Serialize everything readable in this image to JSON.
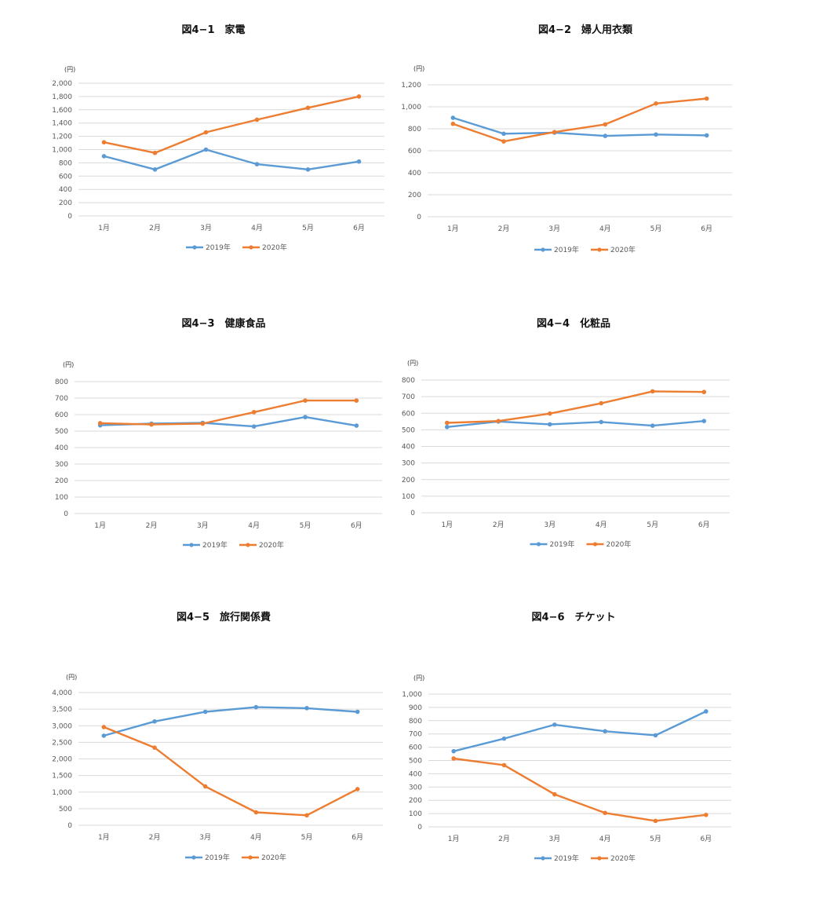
{
  "colors": {
    "y2019": "#5b9bd5",
    "y2020": "#ed7d31",
    "grid": "#d9d9d9"
  },
  "chart_data": [
    {
      "type": "line",
      "title": "図4−1　家電",
      "unit": "(円)",
      "categories": [
        "1月",
        "2月",
        "3月",
        "4月",
        "5月",
        "6月"
      ],
      "ylim": [
        0,
        2000
      ],
      "yticks": [
        0,
        200,
        400,
        600,
        800,
        1000,
        1200,
        1400,
        1600,
        1800,
        2000
      ],
      "ytick_labels": [
        "0",
        "200",
        "400",
        "600",
        "800",
        "1,000",
        "1,200",
        "1,400",
        "1,600",
        "1,800",
        "2,000"
      ],
      "grid": true,
      "legend": "bottom",
      "series": [
        {
          "name": "2019年",
          "values": [
            900,
            700,
            1000,
            780,
            700,
            820
          ]
        },
        {
          "name": "2020年",
          "values": [
            1110,
            950,
            1260,
            1450,
            1630,
            1800
          ]
        }
      ]
    },
    {
      "type": "line",
      "title": "図4−2　婦人用衣類",
      "unit": "(円)",
      "categories": [
        "1月",
        "2月",
        "3月",
        "4月",
        "5月",
        "6月"
      ],
      "ylim": [
        0,
        1200
      ],
      "yticks": [
        0,
        200,
        400,
        600,
        800,
        1000,
        1200
      ],
      "ytick_labels": [
        "0",
        "200",
        "400",
        "600",
        "800",
        "1,000",
        "1,200"
      ],
      "grid": true,
      "legend": "bottom",
      "series": [
        {
          "name": "2019年",
          "values": [
            900,
            755,
            765,
            735,
            748,
            740
          ]
        },
        {
          "name": "2020年",
          "values": [
            845,
            685,
            770,
            840,
            1030,
            1075
          ]
        }
      ]
    },
    {
      "type": "line",
      "title": "図4−3　健康食品",
      "unit": "(円)",
      "categories": [
        "1月",
        "2月",
        "3月",
        "4月",
        "5月",
        "6月"
      ],
      "ylim": [
        0,
        800
      ],
      "yticks": [
        0,
        100,
        200,
        300,
        400,
        500,
        600,
        700,
        800
      ],
      "ytick_labels": [
        "0",
        "100",
        "200",
        "300",
        "400",
        "500",
        "600",
        "700",
        "800"
      ],
      "grid": true,
      "legend": "bottom",
      "series": [
        {
          "name": "2019年",
          "values": [
            535,
            545,
            550,
            528,
            585,
            533
          ]
        },
        {
          "name": "2020年",
          "values": [
            548,
            540,
            545,
            615,
            685,
            685
          ]
        }
      ]
    },
    {
      "type": "line",
      "title": "図4−4　化粧品",
      "unit": "(円)",
      "categories": [
        "1月",
        "2月",
        "3月",
        "4月",
        "5月",
        "6月"
      ],
      "ylim": [
        0,
        800
      ],
      "yticks": [
        0,
        100,
        200,
        300,
        400,
        500,
        600,
        700,
        800
      ],
      "ytick_labels": [
        "0",
        "100",
        "200",
        "300",
        "400",
        "500",
        "600",
        "700",
        "800"
      ],
      "grid": true,
      "legend": "bottom",
      "series": [
        {
          "name": "2019年",
          "values": [
            517,
            550,
            533,
            547,
            525,
            553
          ]
        },
        {
          "name": "2020年",
          "values": [
            542,
            553,
            598,
            660,
            732,
            728
          ]
        }
      ]
    },
    {
      "type": "line",
      "title": "図4−5　旅行関係費",
      "unit": "(円)",
      "categories": [
        "1月",
        "2月",
        "3月",
        "4月",
        "5月",
        "6月"
      ],
      "ylim": [
        0,
        4000
      ],
      "yticks": [
        0,
        500,
        1000,
        1500,
        2000,
        2500,
        3000,
        3500,
        4000
      ],
      "ytick_labels": [
        "0",
        "500",
        "1,000",
        "1,500",
        "2,000",
        "2,500",
        "3,000",
        "3,500",
        "4,000"
      ],
      "grid": true,
      "legend": "bottom",
      "series": [
        {
          "name": "2019年",
          "values": [
            2700,
            3130,
            3420,
            3560,
            3530,
            3420
          ]
        },
        {
          "name": "2020年",
          "values": [
            2960,
            2340,
            1170,
            390,
            300,
            1090
          ]
        }
      ]
    },
    {
      "type": "line",
      "title": "図4−6　チケット",
      "unit": "(円)",
      "categories": [
        "1月",
        "2月",
        "3月",
        "4月",
        "5月",
        "6月"
      ],
      "ylim": [
        0,
        1000
      ],
      "yticks": [
        0,
        100,
        200,
        300,
        400,
        500,
        600,
        700,
        800,
        900,
        1000
      ],
      "ytick_labels": [
        "0",
        "100",
        "200",
        "300",
        "400",
        "500",
        "600",
        "700",
        "800",
        "900",
        "1,000"
      ],
      "grid": true,
      "legend": "bottom",
      "series": [
        {
          "name": "2019年",
          "values": [
            570,
            665,
            770,
            720,
            690,
            870
          ]
        },
        {
          "name": "2020年",
          "values": [
            515,
            465,
            245,
            105,
            45,
            90
          ]
        }
      ]
    }
  ]
}
